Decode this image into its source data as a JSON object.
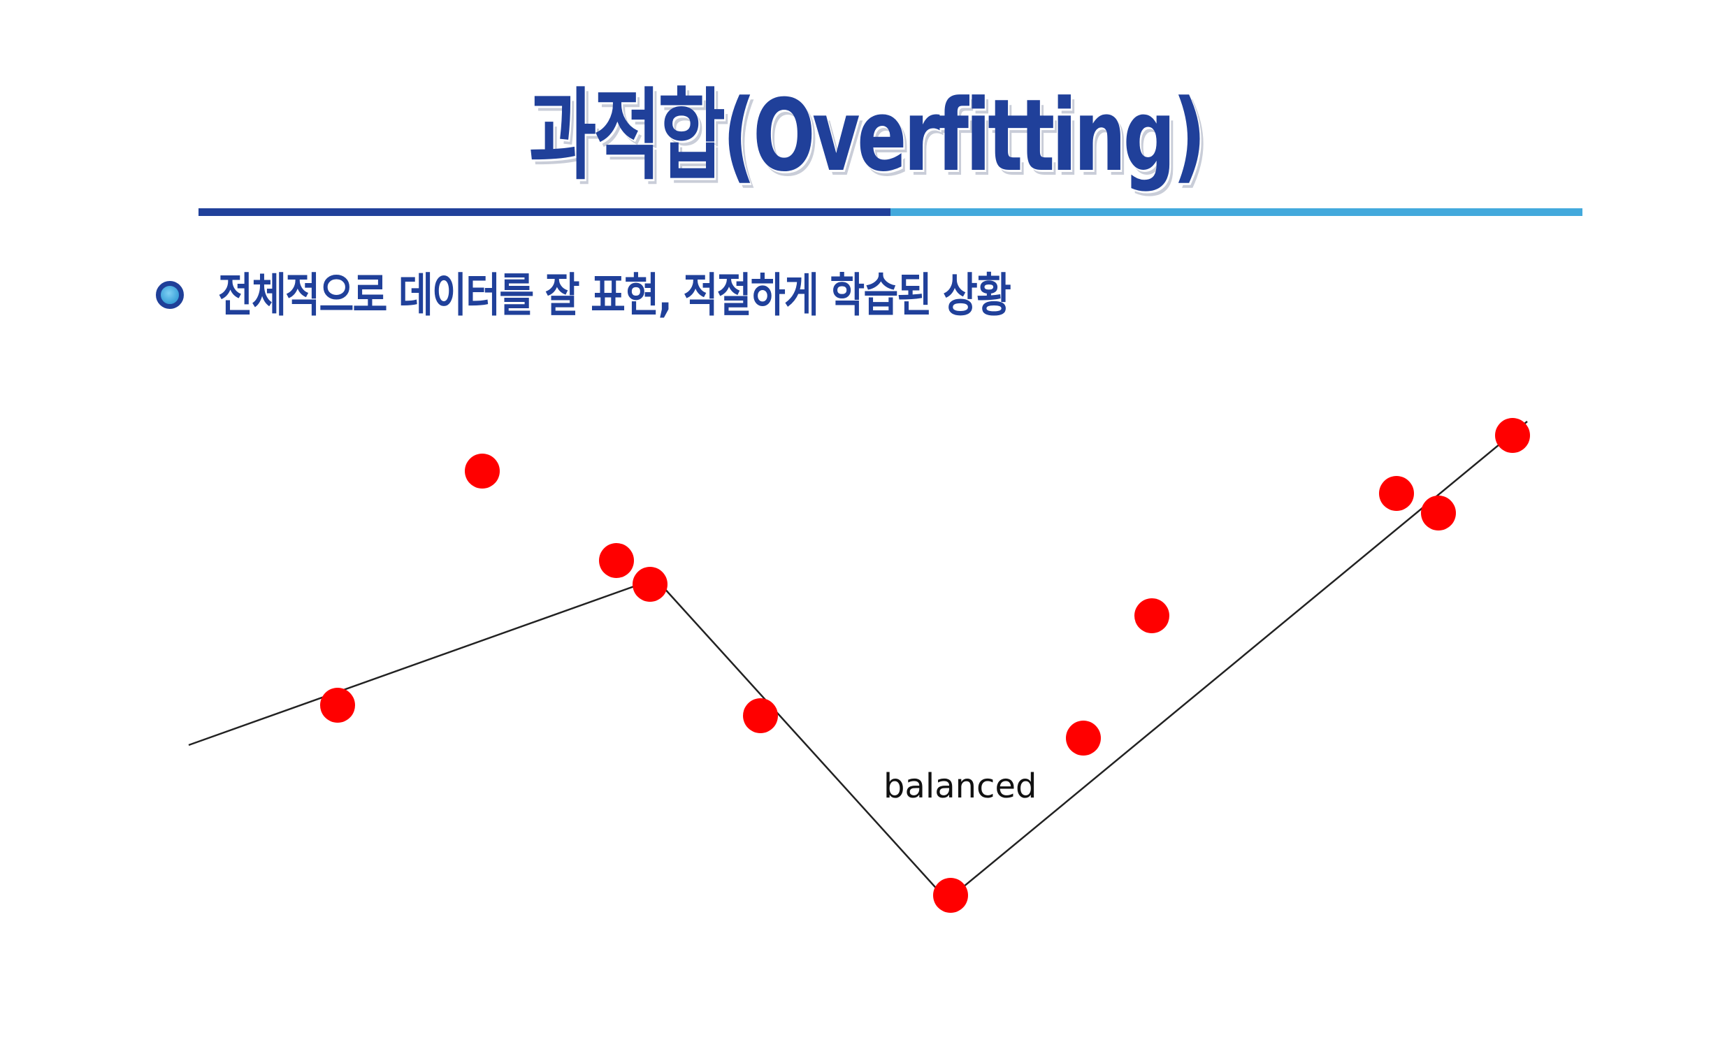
{
  "slide": {
    "title": "과적합(Overfitting)",
    "bullet": "전체적으로 데이터를 잘 표현, 적절하게 학습된 상황"
  },
  "diagram": {
    "label": "balanced",
    "point_color": "#ff0000",
    "line_color": "#222222",
    "title_color": "#20409a",
    "rule_colors": [
      "#20409a",
      "#43a9dc"
    ],
    "bullet_icon": "circle-bullet-icon"
  }
}
